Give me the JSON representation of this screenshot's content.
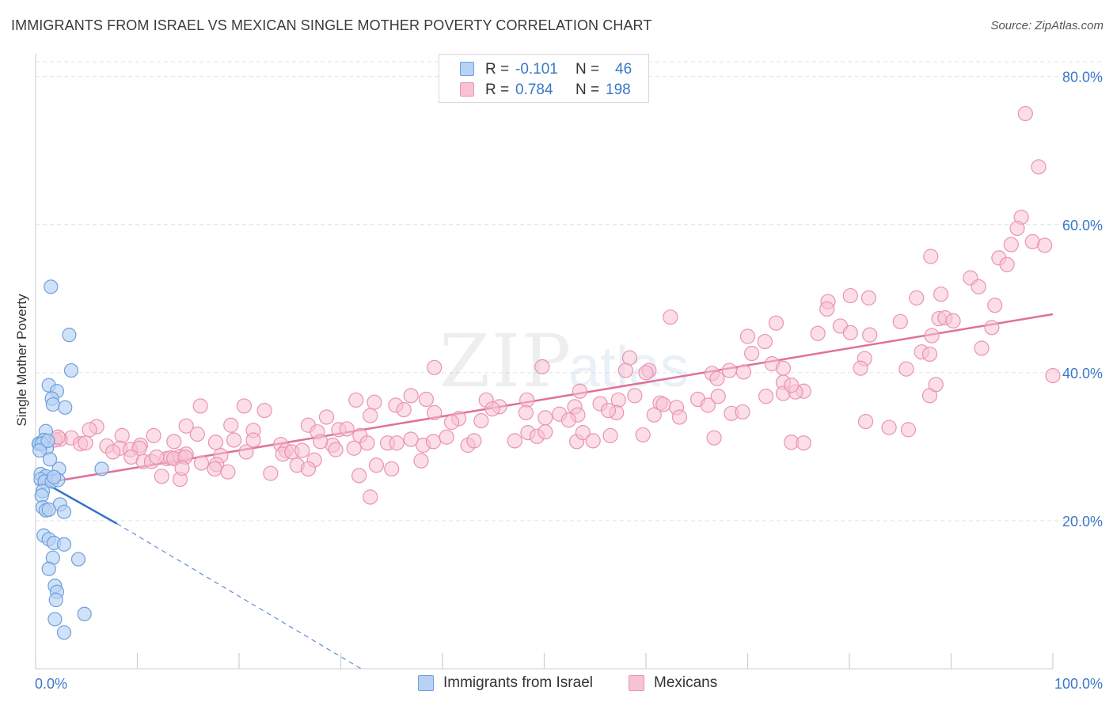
{
  "header": {
    "title": "IMMIGRANTS FROM ISRAEL VS MEXICAN SINGLE MOTHER POVERTY CORRELATION CHART",
    "source": "Source: ZipAtlas.com"
  },
  "legend_top": {
    "rows": [
      {
        "r_label": "R =",
        "r_value": "-0.101",
        "n_label": "N =",
        "n_value": "46"
      },
      {
        "r_label": "R =",
        "r_value": "0.784",
        "n_label": "N =",
        "n_value": "198"
      }
    ]
  },
  "bottom_legend": {
    "series1": "Immigrants from Israel",
    "series2": "Mexicans"
  },
  "colors": {
    "israel_fill": "#b7d2f5",
    "israel_stroke": "#6f9fdc",
    "israel_line": "#3372c9",
    "mexican_fill": "#f7c3d4",
    "mexican_stroke": "#ea93b2",
    "mexican_line": "#e0709a",
    "tick_label": "#3a78c9",
    "grid": "#e2e2e2"
  },
  "watermark": {
    "text1": "ZIP",
    "text2": "atlas"
  },
  "chart_data": {
    "type": "scatter",
    "title": "IMMIGRANTS FROM ISRAEL VS MEXICAN SINGLE MOTHER POVERTY CORRELATION CHART",
    "xlabel": "",
    "ylabel": "Single Mother Poverty",
    "xlim": [
      0,
      100
    ],
    "ylim": [
      0,
      82
    ],
    "x_tick_labels": [
      "0.0%",
      "100.0%"
    ],
    "y_ticks": [
      20,
      40,
      60,
      80
    ],
    "y_tick_labels": [
      "20.0%",
      "40.0%",
      "60.0%",
      "80.0%"
    ],
    "grid": true,
    "legend_placement": "top-center",
    "series": [
      {
        "name": "Immigrants from Israel",
        "R": -0.101,
        "N": 46,
        "trend": {
          "x": [
            0,
            8
          ],
          "y": [
            25.8,
            19.6
          ],
          "dashed_extension_to": [
            32,
            0
          ]
        },
        "points": [
          [
            1.5,
            51.6
          ],
          [
            3.3,
            45.1
          ],
          [
            3.5,
            40.3
          ],
          [
            1.3,
            38.3
          ],
          [
            2.1,
            37.5
          ],
          [
            1.6,
            36.5
          ],
          [
            1.7,
            35.7
          ],
          [
            2.9,
            35.3
          ],
          [
            1.0,
            32.1
          ],
          [
            0.4,
            30.4
          ],
          [
            0.3,
            30.4
          ],
          [
            0.8,
            30.9
          ],
          [
            1.1,
            29.8
          ],
          [
            0.6,
            30.4
          ],
          [
            1.4,
            28.3
          ],
          [
            0.5,
            26.3
          ],
          [
            1.0,
            26.0
          ],
          [
            2.3,
            27.0
          ],
          [
            6.5,
            27.0
          ],
          [
            0.5,
            25.6
          ],
          [
            0.9,
            25.3
          ],
          [
            1.6,
            25.3
          ],
          [
            2.2,
            25.5
          ],
          [
            0.7,
            24.0
          ],
          [
            0.6,
            23.4
          ],
          [
            2.4,
            22.2
          ],
          [
            0.7,
            21.8
          ],
          [
            1.0,
            21.4
          ],
          [
            1.3,
            21.5
          ],
          [
            2.8,
            21.2
          ],
          [
            0.8,
            18.0
          ],
          [
            1.3,
            17.5
          ],
          [
            1.8,
            17.0
          ],
          [
            2.8,
            16.8
          ],
          [
            1.7,
            15.0
          ],
          [
            4.2,
            14.8
          ],
          [
            1.3,
            13.5
          ],
          [
            1.9,
            11.2
          ],
          [
            2.1,
            10.4
          ],
          [
            2.0,
            9.3
          ],
          [
            4.8,
            7.4
          ],
          [
            1.9,
            6.7
          ],
          [
            2.8,
            4.9
          ],
          [
            0.4,
            29.5
          ],
          [
            1.2,
            30.8
          ],
          [
            1.8,
            25.9
          ]
        ]
      },
      {
        "name": "Mexicans",
        "R": 0.784,
        "N": 198,
        "trend": {
          "x": [
            0,
            100
          ],
          "y": [
            24.9,
            47.9
          ]
        },
        "points": [
          [
            97.3,
            75.0
          ],
          [
            98.6,
            67.8
          ],
          [
            96.9,
            61.0
          ],
          [
            96.5,
            59.5
          ],
          [
            98.0,
            57.7
          ],
          [
            99.2,
            57.2
          ],
          [
            95.9,
            57.3
          ],
          [
            94.7,
            55.5
          ],
          [
            95.5,
            54.6
          ],
          [
            88.0,
            55.7
          ],
          [
            91.9,
            52.8
          ],
          [
            92.7,
            51.6
          ],
          [
            89.0,
            50.6
          ],
          [
            86.6,
            50.1
          ],
          [
            80.1,
            50.4
          ],
          [
            81.9,
            50.1
          ],
          [
            94.3,
            49.1
          ],
          [
            77.9,
            49.6
          ],
          [
            77.8,
            48.6
          ],
          [
            62.4,
            47.5
          ],
          [
            88.8,
            47.3
          ],
          [
            89.4,
            47.4
          ],
          [
            90.2,
            47.0
          ],
          [
            85.0,
            46.9
          ],
          [
            79.1,
            46.3
          ],
          [
            72.8,
            46.7
          ],
          [
            82.0,
            45.1
          ],
          [
            94.0,
            46.1
          ],
          [
            80.1,
            45.4
          ],
          [
            76.9,
            45.3
          ],
          [
            88.1,
            45.0
          ],
          [
            70.0,
            44.9
          ],
          [
            71.7,
            44.2
          ],
          [
            93.0,
            43.3
          ],
          [
            87.1,
            42.8
          ],
          [
            87.9,
            42.5
          ],
          [
            58.4,
            42.0
          ],
          [
            70.4,
            42.6
          ],
          [
            81.5,
            41.9
          ],
          [
            72.4,
            41.2
          ],
          [
            73.5,
            40.6
          ],
          [
            81.1,
            40.6
          ],
          [
            49.8,
            40.8
          ],
          [
            39.2,
            40.7
          ],
          [
            68.2,
            40.3
          ],
          [
            85.6,
            40.5
          ],
          [
            100.0,
            39.6
          ],
          [
            69.6,
            40.1
          ],
          [
            60.3,
            40.3
          ],
          [
            58.0,
            40.3
          ],
          [
            60.0,
            40.0
          ],
          [
            53.5,
            37.5
          ],
          [
            66.5,
            39.9
          ],
          [
            67.0,
            39.2
          ],
          [
            73.5,
            38.7
          ],
          [
            75.5,
            37.5
          ],
          [
            73.5,
            37.2
          ],
          [
            71.8,
            36.8
          ],
          [
            74.7,
            37.4
          ],
          [
            67.1,
            36.8
          ],
          [
            74.3,
            38.3
          ],
          [
            65.1,
            36.4
          ],
          [
            57.3,
            36.3
          ],
          [
            61.4,
            35.9
          ],
          [
            66.1,
            35.6
          ],
          [
            63.0,
            35.3
          ],
          [
            55.5,
            35.8
          ],
          [
            48.3,
            36.3
          ],
          [
            44.3,
            36.3
          ],
          [
            38.4,
            36.4
          ],
          [
            45.6,
            35.4
          ],
          [
            33.3,
            36.0
          ],
          [
            36.9,
            36.9
          ],
          [
            35.4,
            35.6
          ],
          [
            31.5,
            36.3
          ],
          [
            53.0,
            35.4
          ],
          [
            51.5,
            34.4
          ],
          [
            57.1,
            34.6
          ],
          [
            53.3,
            34.3
          ],
          [
            56.3,
            34.9
          ],
          [
            58.9,
            36.9
          ],
          [
            61.7,
            35.7
          ],
          [
            68.4,
            34.5
          ],
          [
            52.4,
            33.6
          ],
          [
            50.1,
            33.9
          ],
          [
            48.2,
            34.6
          ],
          [
            44.9,
            35.1
          ],
          [
            36.2,
            35.0
          ],
          [
            28.6,
            34.0
          ],
          [
            22.5,
            34.9
          ],
          [
            16.2,
            35.5
          ],
          [
            20.5,
            35.5
          ],
          [
            32.9,
            34.2
          ],
          [
            39.2,
            34.6
          ],
          [
            26.8,
            32.9
          ],
          [
            21.4,
            32.2
          ],
          [
            27.7,
            32.0
          ],
          [
            29.8,
            32.3
          ],
          [
            30.6,
            32.4
          ],
          [
            43.8,
            33.5
          ],
          [
            41.6,
            33.8
          ],
          [
            40.9,
            33.3
          ],
          [
            19.2,
            32.9
          ],
          [
            14.8,
            32.8
          ],
          [
            31.9,
            31.5
          ],
          [
            29.2,
            30.2
          ],
          [
            15.9,
            31.7
          ],
          [
            19.5,
            30.9
          ],
          [
            13.6,
            30.7
          ],
          [
            11.6,
            31.5
          ],
          [
            10.3,
            30.2
          ],
          [
            8.5,
            31.5
          ],
          [
            6.0,
            32.7
          ],
          [
            5.3,
            32.3
          ],
          [
            3.5,
            31.2
          ],
          [
            2.4,
            31.0
          ],
          [
            1.9,
            30.9
          ],
          [
            2.2,
            31.3
          ],
          [
            4.4,
            30.4
          ],
          [
            4.9,
            30.5
          ],
          [
            7.0,
            30.1
          ],
          [
            8.3,
            29.8
          ],
          [
            9.3,
            29.6
          ],
          [
            10.2,
            29.8
          ],
          [
            7.6,
            29.3
          ],
          [
            9.4,
            28.6
          ],
          [
            12.9,
            28.4
          ],
          [
            10.6,
            28.0
          ],
          [
            11.4,
            28.0
          ],
          [
            11.9,
            28.6
          ],
          [
            13.3,
            28.5
          ],
          [
            14.2,
            28.7
          ],
          [
            14.8,
            29.0
          ],
          [
            13.6,
            28.4
          ],
          [
            14.7,
            28.6
          ],
          [
            16.3,
            27.8
          ],
          [
            18.2,
            28.8
          ],
          [
            17.8,
            27.6
          ],
          [
            17.7,
            30.6
          ],
          [
            20.7,
            29.3
          ],
          [
            21.4,
            30.9
          ],
          [
            24.1,
            30.3
          ],
          [
            24.6,
            29.5
          ],
          [
            24.3,
            29.0
          ],
          [
            25.2,
            29.3
          ],
          [
            26.2,
            29.5
          ],
          [
            27.4,
            28.2
          ],
          [
            28.0,
            30.7
          ],
          [
            29.5,
            29.6
          ],
          [
            31.3,
            29.8
          ],
          [
            32.6,
            30.5
          ],
          [
            34.6,
            30.5
          ],
          [
            35.5,
            30.5
          ],
          [
            36.9,
            31.0
          ],
          [
            38.1,
            30.2
          ],
          [
            39.1,
            30.7
          ],
          [
            40.4,
            31.3
          ],
          [
            42.5,
            30.2
          ],
          [
            43.1,
            30.8
          ],
          [
            47.1,
            30.8
          ],
          [
            48.4,
            31.9
          ],
          [
            49.3,
            31.4
          ],
          [
            50.1,
            32.0
          ],
          [
            53.2,
            30.7
          ],
          [
            53.8,
            31.9
          ],
          [
            54.8,
            30.8
          ],
          [
            56.5,
            31.5
          ],
          [
            59.7,
            31.6
          ],
          [
            60.8,
            34.3
          ],
          [
            63.3,
            34.0
          ],
          [
            66.7,
            31.2
          ],
          [
            69.5,
            34.7
          ],
          [
            74.3,
            30.6
          ],
          [
            75.5,
            30.5
          ],
          [
            81.6,
            33.4
          ],
          [
            83.9,
            32.6
          ],
          [
            85.8,
            32.3
          ],
          [
            87.9,
            36.9
          ],
          [
            88.5,
            38.4
          ],
          [
            12.4,
            26.0
          ],
          [
            14.2,
            25.6
          ],
          [
            14.4,
            27.1
          ],
          [
            17.6,
            27.0
          ],
          [
            18.9,
            26.6
          ],
          [
            23.1,
            26.4
          ],
          [
            25.7,
            27.5
          ],
          [
            26.8,
            27.0
          ],
          [
            31.8,
            26.1
          ],
          [
            32.9,
            23.2
          ],
          [
            33.5,
            27.5
          ],
          [
            35.0,
            27.0
          ],
          [
            37.9,
            28.1
          ]
        ]
      }
    ]
  }
}
